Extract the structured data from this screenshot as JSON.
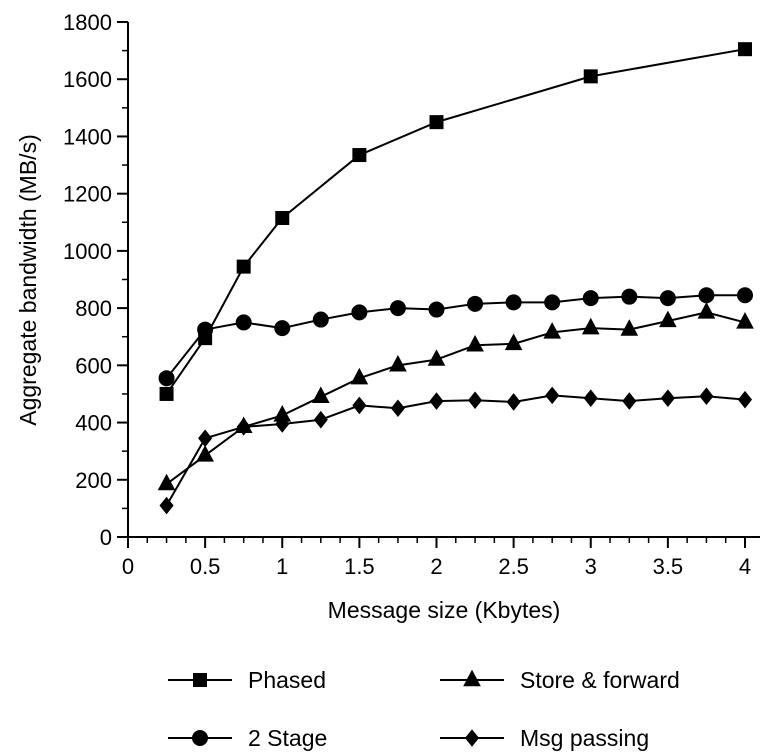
{
  "chart_data": {
    "type": "line",
    "title": "",
    "xlabel": "Message size (Kbytes)",
    "ylabel": "Aggregate bandwidth (MB/s)",
    "xlim": [
      0,
      4
    ],
    "ylim": [
      0,
      1800
    ],
    "xticks": [
      "0",
      "0.5",
      "1",
      "1.5",
      "2",
      "2.5",
      "3",
      "3.5",
      "4"
    ],
    "yticks": [
      "0",
      "200",
      "400",
      "600",
      "800",
      "1000",
      "1200",
      "1400",
      "1600",
      "1800"
    ],
    "grid": false,
    "legend_position": "bottom",
    "series": [
      {
        "name": "Phased",
        "marker": "square",
        "points": [
          [
            0.25,
            500
          ],
          [
            0.5,
            695
          ],
          [
            0.75,
            945
          ],
          [
            1.0,
            1115
          ],
          [
            1.5,
            1335
          ],
          [
            2.0,
            1450
          ],
          [
            3.0,
            1610
          ],
          [
            4.0,
            1705
          ]
        ]
      },
      {
        "name": "Store & forward",
        "marker": "triangle",
        "points": [
          [
            0.25,
            185
          ],
          [
            0.5,
            285
          ],
          [
            0.75,
            385
          ],
          [
            1.0,
            425
          ],
          [
            1.25,
            490
          ],
          [
            1.5,
            555
          ],
          [
            1.75,
            600
          ],
          [
            2.0,
            620
          ],
          [
            2.25,
            670
          ],
          [
            2.5,
            675
          ],
          [
            2.75,
            715
          ],
          [
            3.0,
            730
          ],
          [
            3.25,
            725
          ],
          [
            3.5,
            755
          ],
          [
            3.75,
            785
          ],
          [
            4.0,
            750
          ]
        ]
      },
      {
        "name": "2 Stage",
        "marker": "circle",
        "points": [
          [
            0.25,
            555
          ],
          [
            0.5,
            725
          ],
          [
            0.75,
            750
          ],
          [
            1.0,
            730
          ],
          [
            1.25,
            760
          ],
          [
            1.5,
            785
          ],
          [
            1.75,
            800
          ],
          [
            2.0,
            795
          ],
          [
            2.25,
            815
          ],
          [
            2.5,
            820
          ],
          [
            2.75,
            820
          ],
          [
            3.0,
            835
          ],
          [
            3.25,
            840
          ],
          [
            3.5,
            835
          ],
          [
            3.75,
            845
          ],
          [
            4.0,
            845
          ]
        ]
      },
      {
        "name": "Msg passing",
        "marker": "diamond",
        "points": [
          [
            0.25,
            110
          ],
          [
            0.5,
            345
          ],
          [
            0.75,
            385
          ],
          [
            1.0,
            395
          ],
          [
            1.25,
            410
          ],
          [
            1.5,
            460
          ],
          [
            1.75,
            450
          ],
          [
            2.0,
            475
          ],
          [
            2.25,
            478
          ],
          [
            2.5,
            472
          ],
          [
            2.75,
            495
          ],
          [
            3.0,
            485
          ],
          [
            3.25,
            475
          ],
          [
            3.5,
            485
          ],
          [
            3.75,
            492
          ],
          [
            4.0,
            480
          ]
        ]
      }
    ]
  }
}
